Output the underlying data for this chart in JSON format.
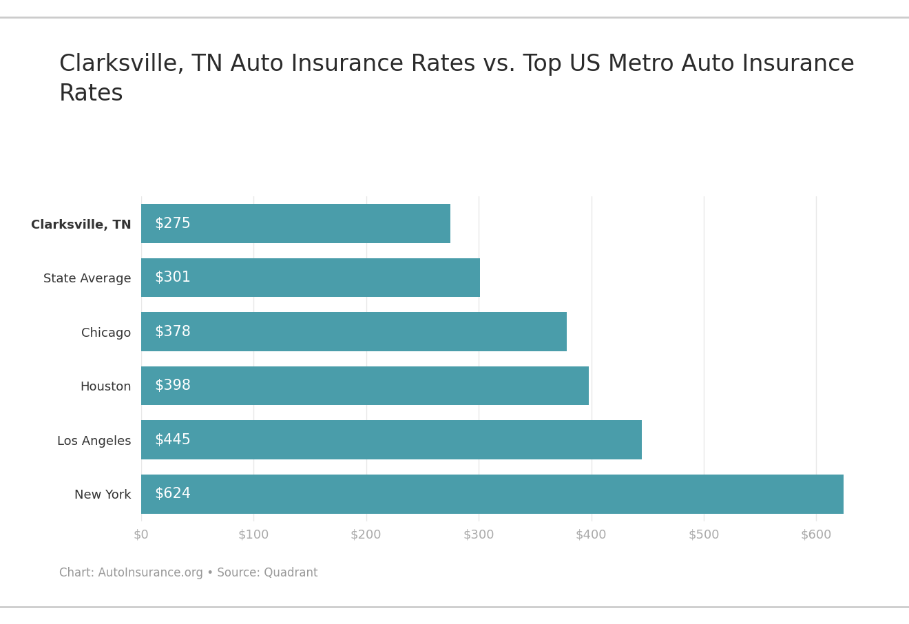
{
  "categories": [
    "Clarksville, TN",
    "State Average",
    "Chicago",
    "Houston",
    "Los Angeles",
    "New York"
  ],
  "values": [
    275,
    301,
    378,
    398,
    445,
    624
  ],
  "labels": [
    "$275",
    "$301",
    "$378",
    "$398",
    "$445",
    "$624"
  ],
  "bar_color": "#4a9daa",
  "title": "Clarksville, TN Auto Insurance Rates vs. Top US Metro Auto Insurance\nRates",
  "footnote": "Chart: AutoInsurance.org • Source: Quadrant",
  "xlim": [
    0,
    650
  ],
  "xticks": [
    0,
    100,
    200,
    300,
    400,
    500,
    600
  ],
  "xtick_labels": [
    "$0",
    "$100",
    "$200",
    "$300",
    "$400",
    "$500",
    "$600"
  ],
  "bar_height": 0.72,
  "label_fontsize": 15,
  "tick_fontsize": 13,
  "title_fontsize": 24,
  "footnote_fontsize": 12,
  "bold_category": "Clarksville, TN",
  "background_color": "#ffffff",
  "top_line_color": "#cccccc",
  "bottom_line_color": "#cccccc",
  "grid_color": "#e8e8e8",
  "label_text_color": "#ffffff",
  "ytick_color": "#333333",
  "xtick_color": "#aaaaaa"
}
